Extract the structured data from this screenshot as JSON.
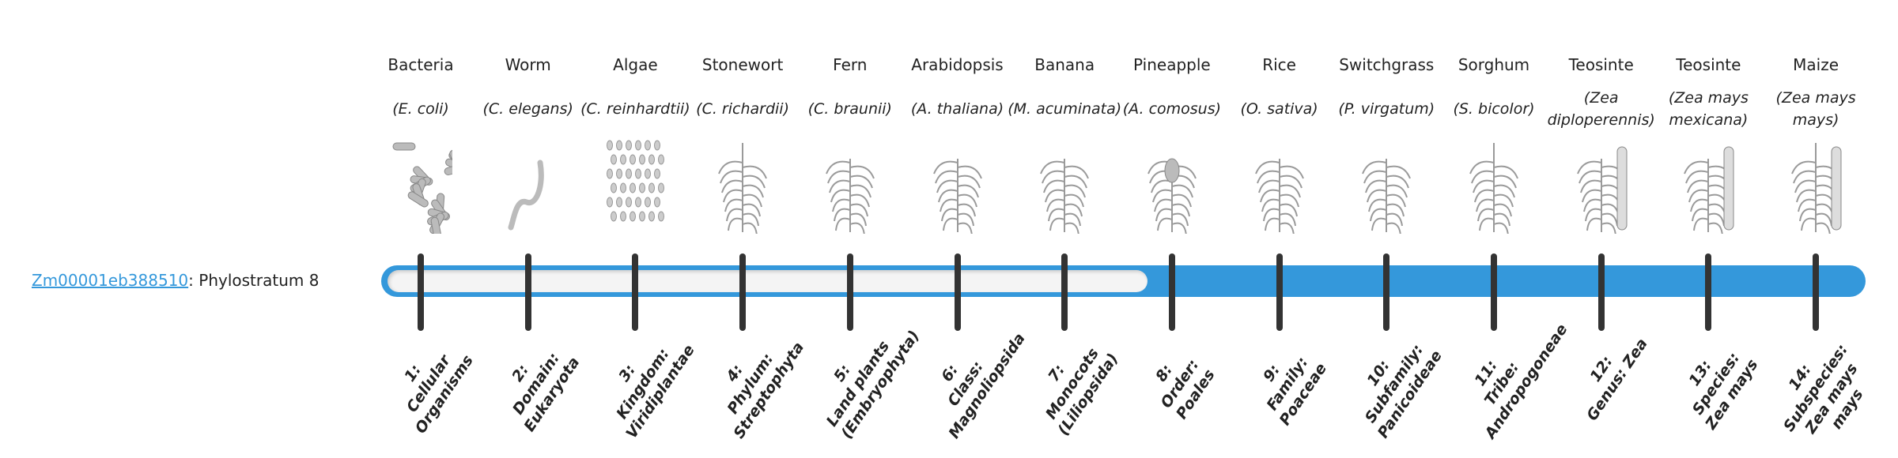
{
  "gene": {
    "id": "Zm00001eb388510",
    "suffix": ": Phylostratum 8"
  },
  "phylostratum": 8,
  "total_strata": 14,
  "colors": {
    "accent": "#3498db",
    "tick": "#333333",
    "groove": "#f4f4f4"
  },
  "strata": [
    {
      "common": "Bacteria",
      "sci": "(E. coli)",
      "num": "1:",
      "rank": "Cellular Organisms",
      "icon": "bacteria-icon"
    },
    {
      "common": "Worm",
      "sci": "(C. elegans)",
      "num": "2:",
      "rank": "Domain: Eukaryota",
      "icon": "worm-icon"
    },
    {
      "common": "Algae",
      "sci": "(C. reinhardtii)",
      "num": "3:",
      "rank": "Kingdom: Viridiplantae",
      "icon": "algae-icon"
    },
    {
      "common": "Stonewort",
      "sci": "(C. richardii)",
      "num": "4:",
      "rank": "Phylum: Streptophyta",
      "icon": "stonewort-icon"
    },
    {
      "common": "Fern",
      "sci": "(C. braunii)",
      "num": "5:",
      "rank": "Land plants (Embryophyta)",
      "icon": "fern-icon"
    },
    {
      "common": "Arabidopsis",
      "sci": "(A. thaliana)",
      "num": "6:",
      "rank": "Class: Magnoliopsida",
      "icon": "arabidopsis-icon"
    },
    {
      "common": "Banana",
      "sci": "(M. acuminata)",
      "num": "7:",
      "rank": "Monocots (Liliopsida)",
      "icon": "banana-icon"
    },
    {
      "common": "Pineapple",
      "sci": "(A. comosus)",
      "num": "8:",
      "rank": "Order: Poales",
      "icon": "pineapple-icon"
    },
    {
      "common": "Rice",
      "sci": "(O. sativa)",
      "num": "9:",
      "rank": "Family: Poaceae",
      "icon": "rice-icon"
    },
    {
      "common": "Switchgrass",
      "sci": "(P. virgatum)",
      "num": "10:",
      "rank": "Subfamily: Panicoideae",
      "icon": "switchgrass-icon"
    },
    {
      "common": "Sorghum",
      "sci": "(S. bicolor)",
      "num": "11:",
      "rank": "Tribe: Andropogoneae",
      "icon": "sorghum-icon"
    },
    {
      "common": "Teosinte",
      "sci": "(Zea diploperennis)",
      "num": "12:",
      "rank": "Genus: Zea",
      "icon": "teosinte-icon"
    },
    {
      "common": "Teosinte",
      "sci": "(Zea mays mexicana)",
      "num": "13:",
      "rank": "Species: Zea mays",
      "icon": "teosinte-icon"
    },
    {
      "common": "Maize",
      "sci": "(Zea mays mays)",
      "num": "14:",
      "rank": "Subspecies: Zea mays mays",
      "icon": "maize-icon"
    }
  ]
}
